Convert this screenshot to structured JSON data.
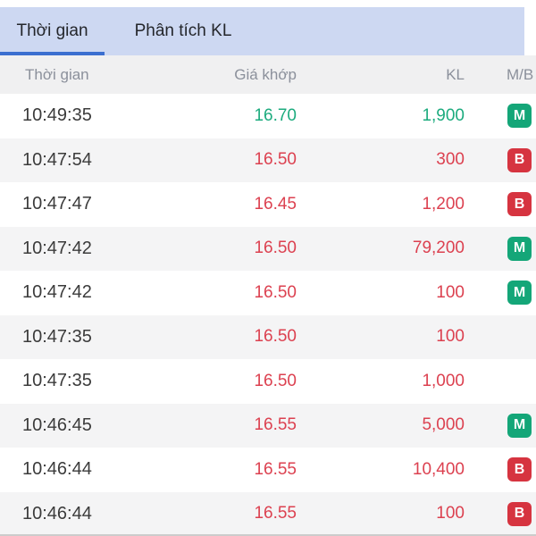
{
  "tabs": {
    "active_label": "Thời gian",
    "inactive_label": "Phân tích KL"
  },
  "table": {
    "columns": {
      "time": "Thời gian",
      "price": "Giá khớp",
      "volume": "KL",
      "side": "M/B"
    },
    "rows": [
      {
        "time": "10:49:35",
        "price": "16.70",
        "volume": "1,900",
        "trend": "up",
        "side": "M"
      },
      {
        "time": "10:47:54",
        "price": "16.50",
        "volume": "300",
        "trend": "down",
        "side": "B"
      },
      {
        "time": "10:47:47",
        "price": "16.45",
        "volume": "1,200",
        "trend": "down",
        "side": "B"
      },
      {
        "time": "10:47:42",
        "price": "16.50",
        "volume": "79,200",
        "trend": "down",
        "side": "M"
      },
      {
        "time": "10:47:42",
        "price": "16.50",
        "volume": "100",
        "trend": "down",
        "side": "M"
      },
      {
        "time": "10:47:35",
        "price": "16.50",
        "volume": "100",
        "trend": "down",
        "side": ""
      },
      {
        "time": "10:47:35",
        "price": "16.50",
        "volume": "1,000",
        "trend": "down",
        "side": ""
      },
      {
        "time": "10:46:45",
        "price": "16.55",
        "volume": "5,000",
        "trend": "down",
        "side": "M"
      },
      {
        "time": "10:46:44",
        "price": "16.55",
        "volume": "10,400",
        "trend": "down",
        "side": "B"
      },
      {
        "time": "10:46:44",
        "price": "16.55",
        "volume": "100",
        "trend": "down",
        "side": "B"
      }
    ]
  },
  "colors": {
    "up": "#1cab7e",
    "down": "#dc4150",
    "tab_bar_bg": "#cdd8f2",
    "tab_underline": "#3b6fd0",
    "badge": {
      "M": "#14a678",
      "B": "#d63440"
    }
  }
}
